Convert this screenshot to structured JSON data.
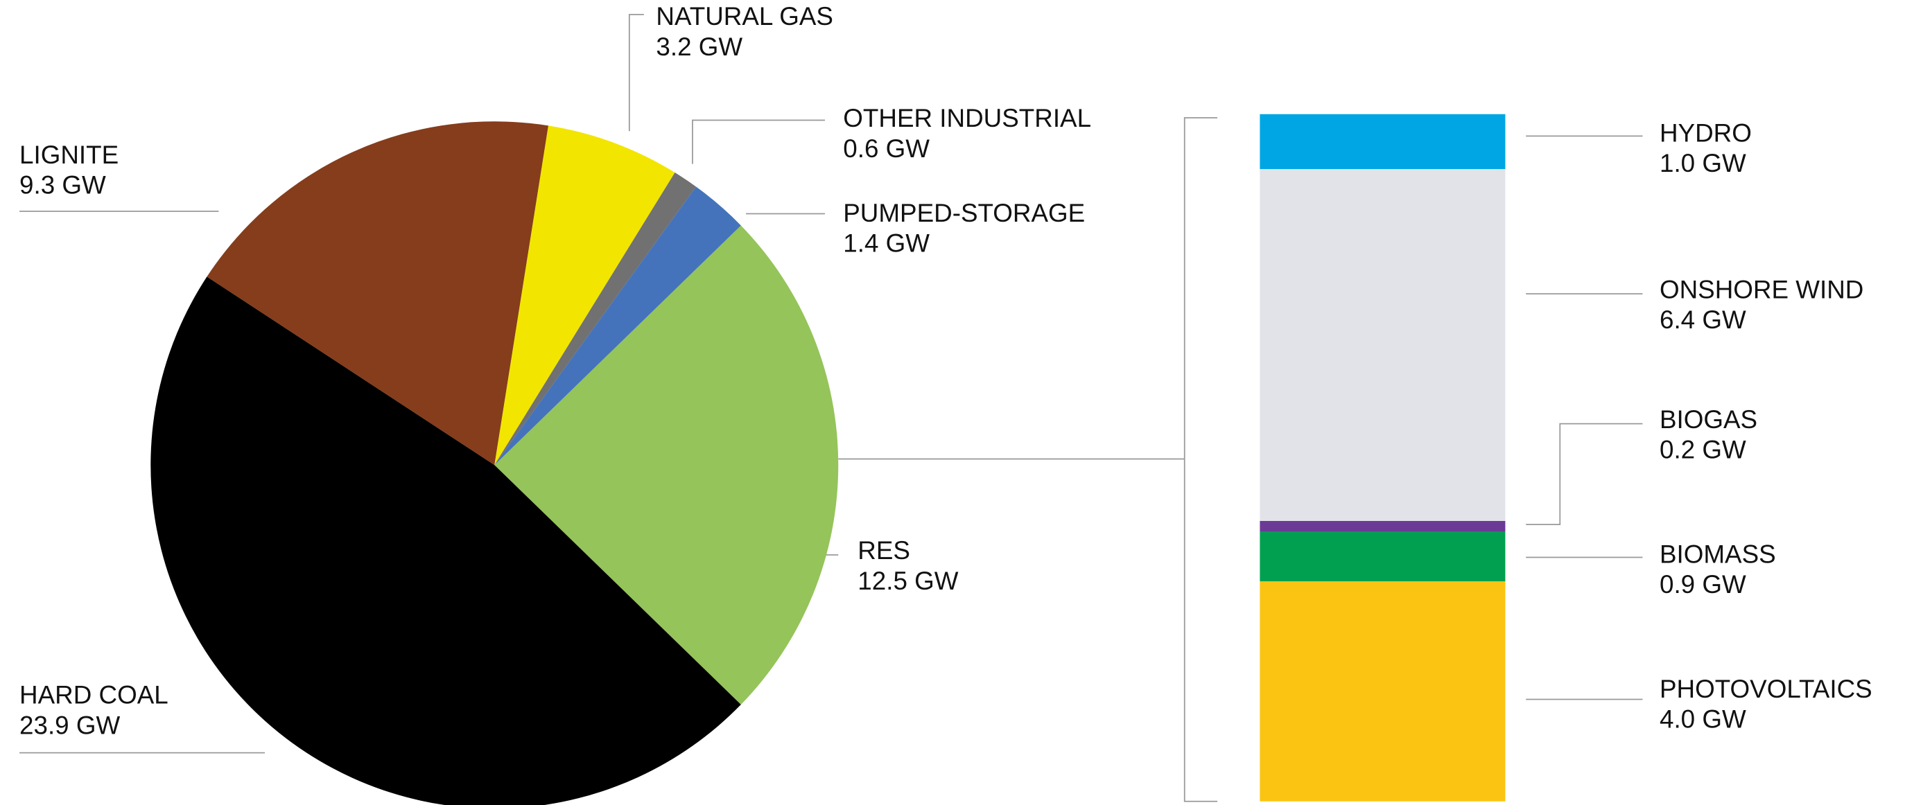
{
  "chart_data": [
    {
      "type": "pie",
      "categories": [
        "RES",
        "HARD COAL",
        "LIGNITE",
        "NATURAL GAS",
        "OTHER INDUSTRIAL",
        "PUMPED-STORAGE"
      ],
      "values": [
        12.5,
        23.9,
        9.3,
        3.2,
        0.6,
        1.4
      ],
      "value_labels": [
        "12.5 GW",
        "23.9 GW",
        "9.3 GW",
        "3.2 GW",
        "0.6 GW",
        "1.4 GW"
      ],
      "colors": [
        "#95c45a",
        "#000000",
        "#853d1c",
        "#f2e500",
        "#717171",
        "#4473bb"
      ]
    },
    {
      "type": "stacked-bar",
      "categories": [
        "HYDRO",
        "ONSHORE WIND",
        "BIOGAS",
        "BIOMASS",
        "PHOTOVOLTAICS"
      ],
      "values": [
        1.0,
        6.4,
        0.2,
        0.9,
        4.0
      ],
      "value_labels": [
        "1.0 GW",
        "6.4 GW",
        "0.2 GW",
        "0.9 GW",
        "4.0 GW"
      ],
      "colors": [
        "#00a6e4",
        "#e1e3e8",
        "#6b3a96",
        "#00a050",
        "#fbc412"
      ]
    }
  ]
}
